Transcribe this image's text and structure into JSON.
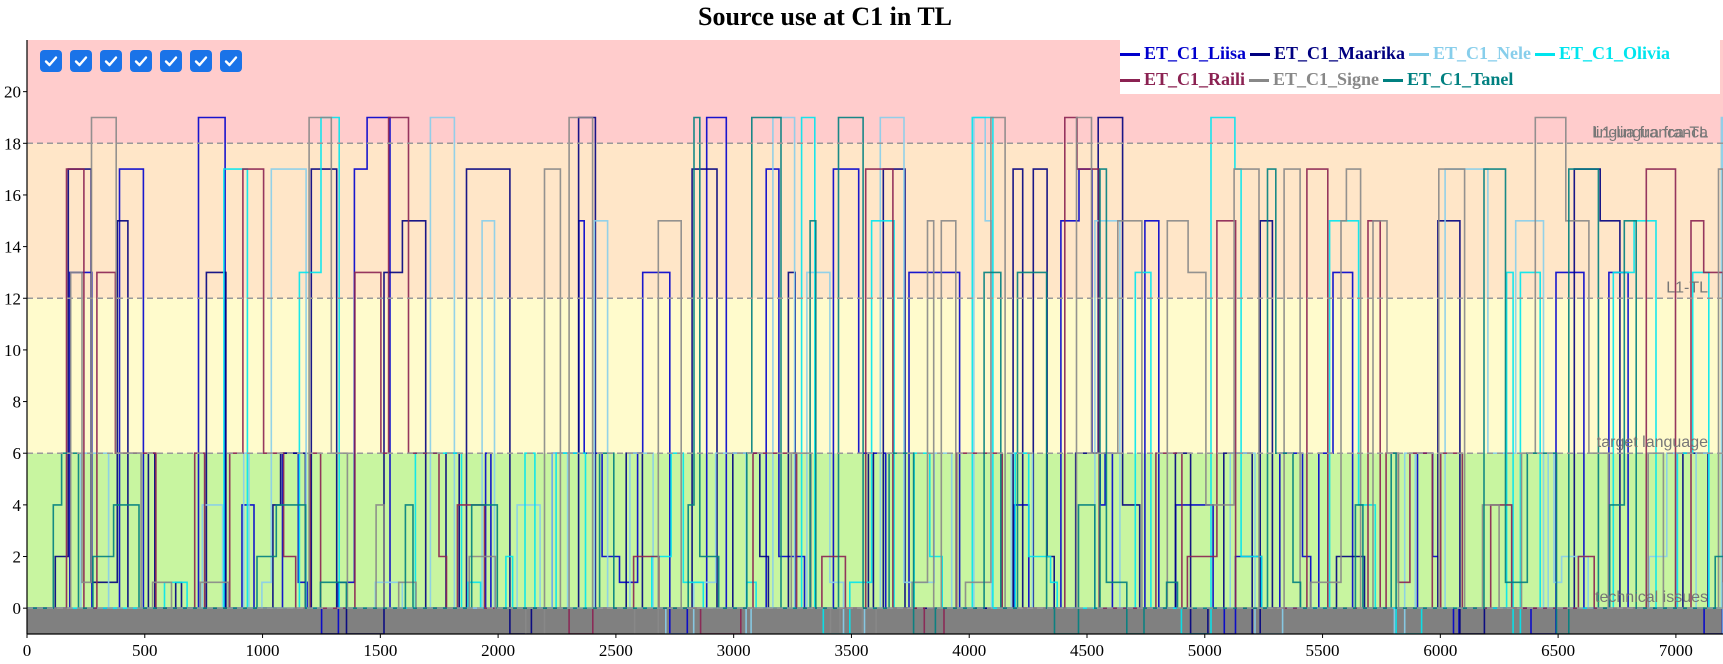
{
  "chart_data": {
    "type": "line",
    "title": "Source use at C1 in TL",
    "xlim": [
      0,
      7200
    ],
    "ylim": [
      -1,
      22
    ],
    "x_ticks": [
      0,
      500,
      1000,
      1500,
      2000,
      2500,
      3000,
      3500,
      4000,
      4500,
      5000,
      5500,
      6000,
      6500,
      7000
    ],
    "y_ticks": [
      0,
      2,
      4,
      6,
      8,
      10,
      12,
      14,
      16,
      18,
      20
    ],
    "bands": [
      {
        "label": "technical issues",
        "from": -1,
        "to": 0,
        "color": "#808080"
      },
      {
        "label": "target language",
        "from": 0,
        "to": 6,
        "color": "#c8f5a0"
      },
      {
        "label": "L1-TL",
        "from": 6,
        "to": 12,
        "color": "#fffbcc"
      },
      {
        "label": "lingua franca-TL",
        "from": 12,
        "to": 18,
        "color": "#ffe6c8"
      },
      {
        "label": "L1-lingua franca",
        "from": 18,
        "to": 22,
        "color": "#ffcccc"
      }
    ],
    "series": [
      {
        "name": "ET_C1_Liisa",
        "color": "#0000cd"
      },
      {
        "name": "ET_C1_Maarika",
        "color": "#000080"
      },
      {
        "name": "ET_C1_Nele",
        "color": "#87ceeb"
      },
      {
        "name": "ET_C1_Olivia",
        "color": "#00e5ee"
      },
      {
        "name": "ET_C1_Raili",
        "color": "#8b2252"
      },
      {
        "name": "ET_C1_Signe",
        "color": "#888888"
      },
      {
        "name": "ET_C1_Tanel",
        "color": "#008080"
      }
    ],
    "grid": false,
    "legend_position": "top-right"
  },
  "checkboxes": [
    {
      "checked": true
    },
    {
      "checked": true
    },
    {
      "checked": true
    },
    {
      "checked": true
    },
    {
      "checked": true
    },
    {
      "checked": true
    },
    {
      "checked": true
    }
  ]
}
